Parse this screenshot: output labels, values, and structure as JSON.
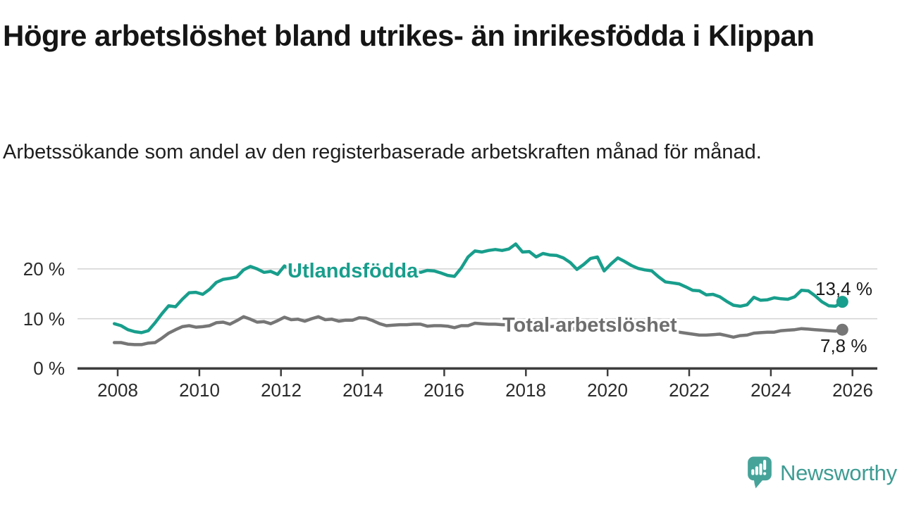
{
  "header": {
    "title": "Högre arbetslöshet bland utrikes- än inrikesfödda i Klippan",
    "subtitle": "Arbetssökande som andel av den registerbaserade arbetskraften månad för månad."
  },
  "colors": {
    "teal": "#189E8C",
    "gray": "#767676",
    "gray_label": "#6E6E6E",
    "axis": "#3D3D3D",
    "gridline": "#D2D2D2",
    "tick_text": "#2B2B2B",
    "value_text": "#1B1B1B",
    "logo_teal": "#46A39A",
    "logo_text_teal": "#3E9C93"
  },
  "chart_data": {
    "type": "line",
    "start_year": 2007.9167,
    "step_years": 0.16667,
    "x_axis": {
      "ticks": [
        2008,
        2010,
        2012,
        2014,
        2016,
        2018,
        2020,
        2022,
        2024,
        2026
      ]
    },
    "y_axis": {
      "gridlines": [
        0,
        10,
        20
      ],
      "tick_labels": [
        "0 %",
        "10 %",
        "20 %"
      ],
      "ylim": [
        0,
        27
      ],
      "unit": "%"
    },
    "series": [
      {
        "name": "Utlandsfödda",
        "label": "Utlandsfödda",
        "color": "#189E8C",
        "end_label": "13,4 %",
        "end_value": 13.4,
        "values": [
          9.0,
          8.6,
          7.8,
          7.4,
          7.2,
          7.6,
          9.2,
          11.0,
          12.6,
          12.4,
          13.9,
          15.2,
          15.3,
          14.9,
          15.9,
          17.3,
          17.9,
          18.1,
          18.4,
          19.8,
          20.5,
          20.0,
          19.3,
          19.5,
          18.9,
          20.6,
          19.8,
          19.5,
          19.9,
          19.4,
          19.2,
          19.4,
          19.9,
          19.6,
          19.9,
          19.6,
          19.9,
          20.4,
          19.7,
          19.1,
          18.6,
          18.3,
          18.7,
          19.1,
          19.5,
          19.3,
          19.7,
          19.6,
          19.2,
          18.7,
          18.5,
          20.2,
          22.4,
          23.6,
          23.4,
          23.7,
          23.9,
          23.7,
          24.0,
          25.0,
          23.4,
          23.5,
          22.4,
          23.1,
          22.8,
          22.7,
          22.2,
          21.3,
          19.9,
          20.9,
          22.1,
          22.4,
          19.6,
          21.0,
          22.2,
          21.5,
          20.7,
          20.1,
          19.8,
          19.6,
          18.4,
          17.4,
          17.2,
          17.0,
          16.4,
          15.7,
          15.6,
          14.8,
          14.9,
          14.4,
          13.5,
          12.7,
          12.5,
          12.8,
          14.3,
          13.7,
          13.8,
          14.2,
          14.0,
          13.9,
          14.4,
          15.7,
          15.6,
          14.6,
          13.4,
          12.6,
          12.5,
          13.4
        ]
      },
      {
        "name": "Total arbetslöshet",
        "label": "Total arbetslöshet",
        "color": "#767676",
        "end_label": "7,8 %",
        "end_value": 7.8,
        "values": [
          5.2,
          5.2,
          4.9,
          4.8,
          4.8,
          5.1,
          5.2,
          6.1,
          7.1,
          7.8,
          8.4,
          8.6,
          8.3,
          8.4,
          8.6,
          9.2,
          9.3,
          8.9,
          9.6,
          10.4,
          9.9,
          9.3,
          9.4,
          9.0,
          9.6,
          10.3,
          9.8,
          9.9,
          9.5,
          10.0,
          10.4,
          9.8,
          9.9,
          9.5,
          9.7,
          9.7,
          10.2,
          10.1,
          9.6,
          9.0,
          8.6,
          8.7,
          8.8,
          8.8,
          8.9,
          8.9,
          8.5,
          8.6,
          8.6,
          8.5,
          8.2,
          8.6,
          8.6,
          9.1,
          9.0,
          8.9,
          8.9,
          8.8,
          8.8,
          8.9,
          8.8,
          8.8,
          8.5,
          8.3,
          8.4,
          8.5,
          8.3,
          8.1,
          7.9,
          8.0,
          8.2,
          8.3,
          8.3,
          8.6,
          9.0,
          8.9,
          8.7,
          8.5,
          8.3,
          8.1,
          7.9,
          7.7,
          7.5,
          7.3,
          7.1,
          6.9,
          6.7,
          6.7,
          6.8,
          6.9,
          6.6,
          6.3,
          6.6,
          6.7,
          7.1,
          7.2,
          7.3,
          7.3,
          7.6,
          7.7,
          7.8,
          8.0,
          7.9,
          7.8,
          7.7,
          7.6,
          7.5,
          7.8
        ]
      }
    ]
  },
  "footer": {
    "brand": "Newsworthy",
    "logo_icon": "newsworthy-speech-bubble-bar-chart-icon"
  }
}
